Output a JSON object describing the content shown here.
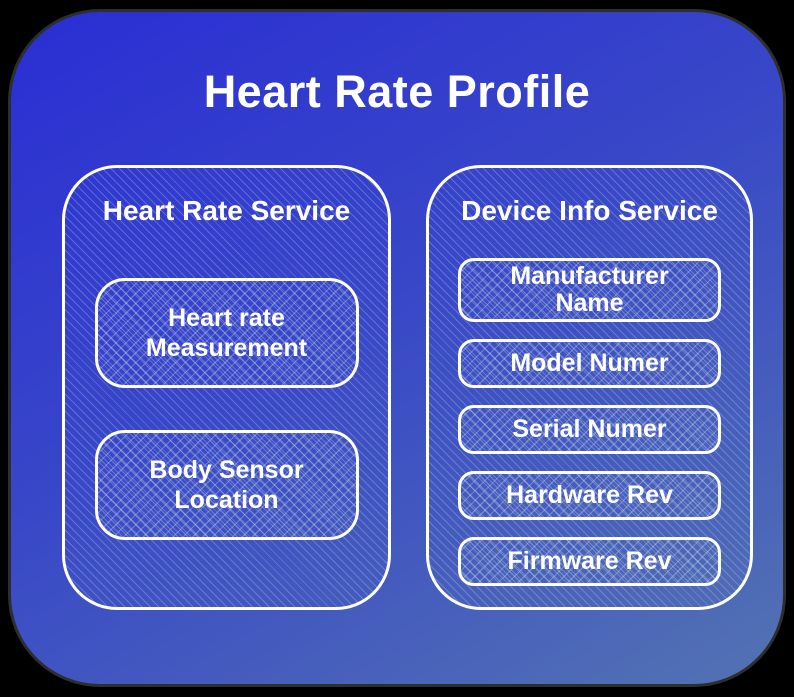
{
  "title": "Heart Rate Profile",
  "colors": {
    "gradient_start": "#2a2ed4",
    "gradient_end": "#5373b2",
    "outer_border": "#2e2e2e",
    "outside_bg": "#000000",
    "box_border": "#ffffff",
    "text_color": "#ffffff"
  },
  "services": [
    {
      "name": "Heart Rate Service",
      "characteristics": [
        {
          "label": "Heart rate\nMeasurement"
        },
        {
          "label": "Body Sensor\nLocation"
        }
      ]
    },
    {
      "name": "Device Info Service",
      "characteristics": [
        {
          "label": "Manufacturer\nName"
        },
        {
          "label": "Model Numer"
        },
        {
          "label": "Serial Numer"
        },
        {
          "label": "Hardware Rev"
        },
        {
          "label": "Firmware Rev"
        }
      ]
    }
  ]
}
